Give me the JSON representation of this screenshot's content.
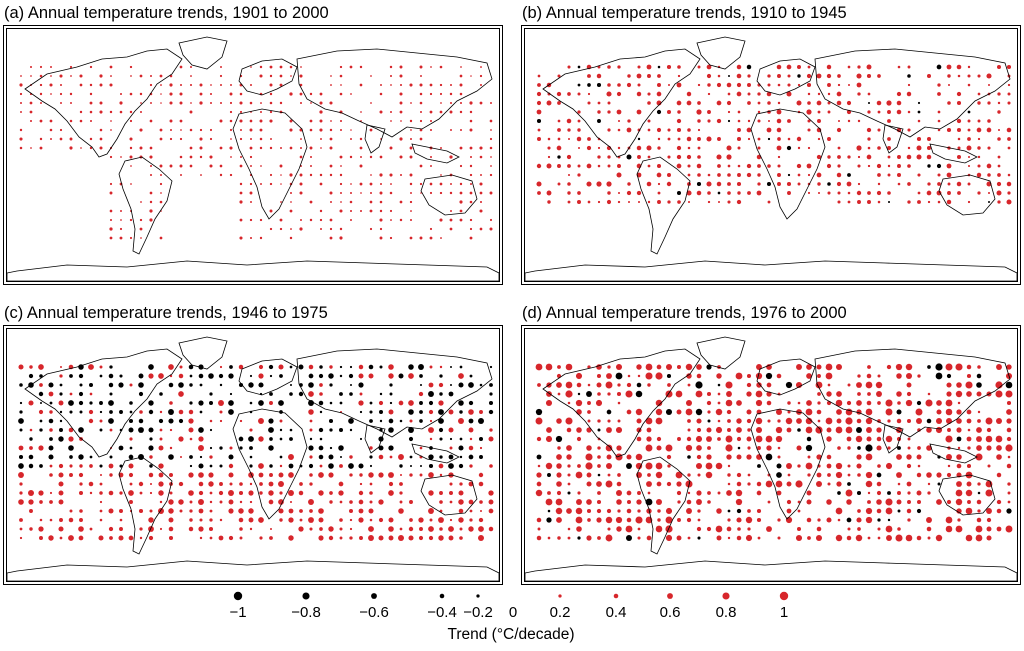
{
  "panels": [
    {
      "id": "a",
      "title": "(a) Annual temperature trends, 1901 to 2000",
      "period": "1901-2000"
    },
    {
      "id": "b",
      "title": "(b) Annual temperature trends, 1910 to 1945",
      "period": "1910-1945"
    },
    {
      "id": "c",
      "title": "(c) Annual temperature trends, 1946 to 1975",
      "period": "1946-1975"
    },
    {
      "id": "d",
      "title": "(d) Annual temperature trends, 1976 to 2000",
      "period": "1976-2000"
    }
  ],
  "legend": {
    "title": "Trend (°C/decade)",
    "ticks": [
      "−1",
      "−0.8",
      "−0.6",
      "−0.4",
      "−0.2",
      "0",
      "0.2",
      "0.4",
      "0.6",
      "0.8",
      "1"
    ],
    "values": [
      -1,
      -0.8,
      -0.6,
      -0.4,
      -0.2,
      0,
      0.2,
      0.4,
      0.6,
      0.8,
      1
    ]
  },
  "colors": {
    "warming": "#d7262b",
    "cooling": "#000000",
    "coastline": "#000000",
    "background": "#ffffff"
  }
}
